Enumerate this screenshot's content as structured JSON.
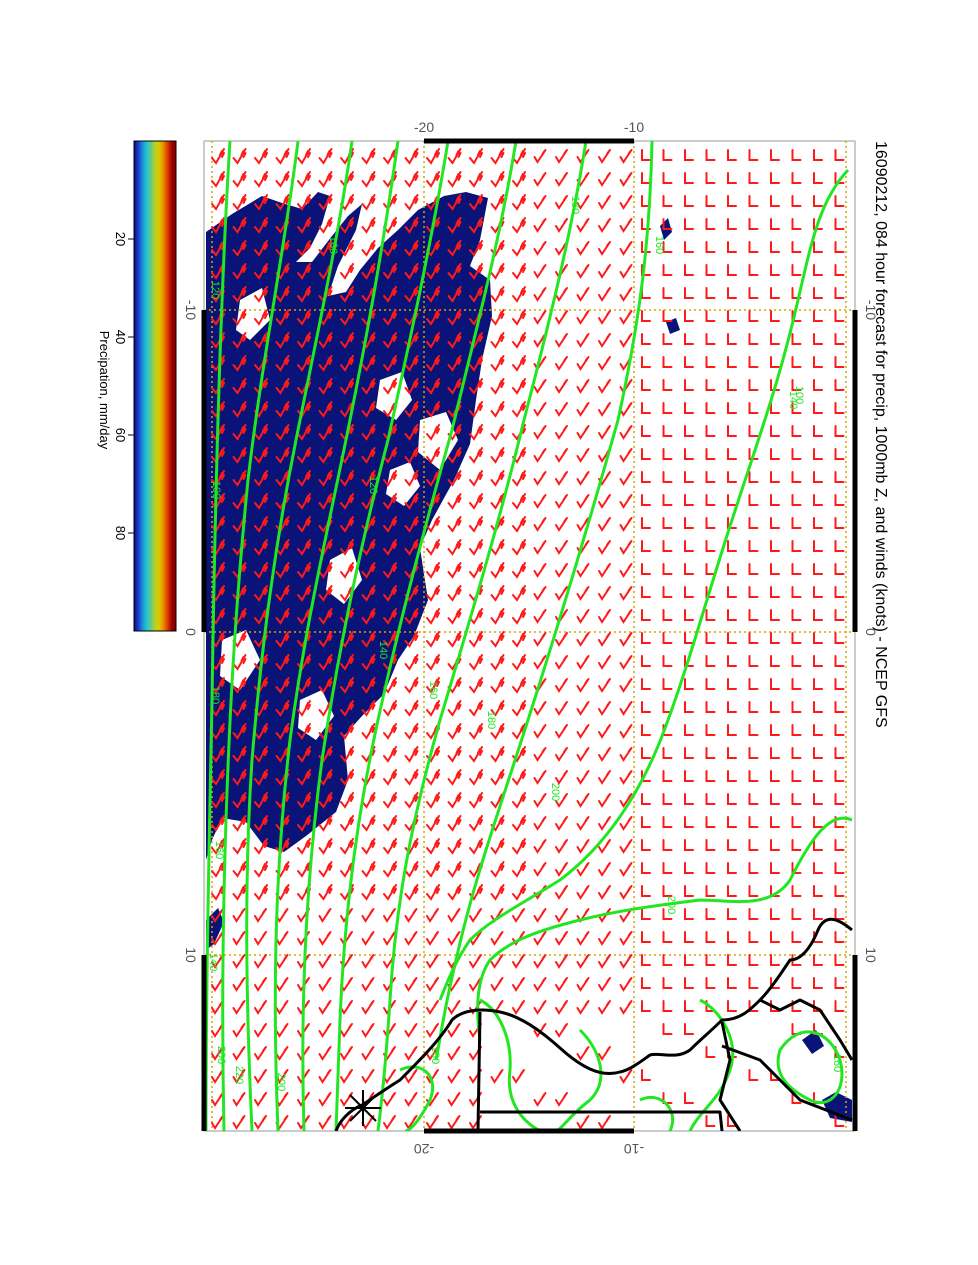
{
  "title": "16090212, 084 hour forecast for precip, 1000mb Z, and winds (knots) - NCEP GFS",
  "colorbar": {
    "label": "Precipation, mm/day",
    "ticks": [
      "20",
      "40",
      "60",
      "80"
    ],
    "tick_values": [
      20,
      40,
      60,
      80
    ],
    "range": [
      0,
      100
    ],
    "colors": [
      "#0a0a78",
      "#1e3cc8",
      "#1e8cdc",
      "#1ec8d2",
      "#64c88c",
      "#b4d228",
      "#dcc800",
      "#e68c00",
      "#dc3c00",
      "#a00000",
      "#7a0000"
    ]
  },
  "axes": {
    "longitude_ticks": [
      "-10",
      "0",
      "10"
    ],
    "longitude_values": [
      -10,
      0,
      10
    ],
    "latitude_ticks": [
      "-20",
      "-10"
    ],
    "latitude_values": [
      -20,
      -10
    ],
    "longitude_range": [
      -10,
      15
    ],
    "latitude_range": [
      -25,
      -5
    ]
  },
  "contour_labels": [
    "180",
    "160",
    "160",
    "140",
    "120",
    "100",
    "120",
    "140",
    "160",
    "180",
    "200",
    "200",
    "180",
    "160",
    "140",
    "200",
    "220",
    "200",
    "180",
    "160",
    "100"
  ],
  "colors": {
    "precip_fill": "#0a1478",
    "contour": "#22e622",
    "wind_barb": "#ff1a1a",
    "coastline": "#000000",
    "grid": "#d9a400"
  },
  "marker": "*"
}
